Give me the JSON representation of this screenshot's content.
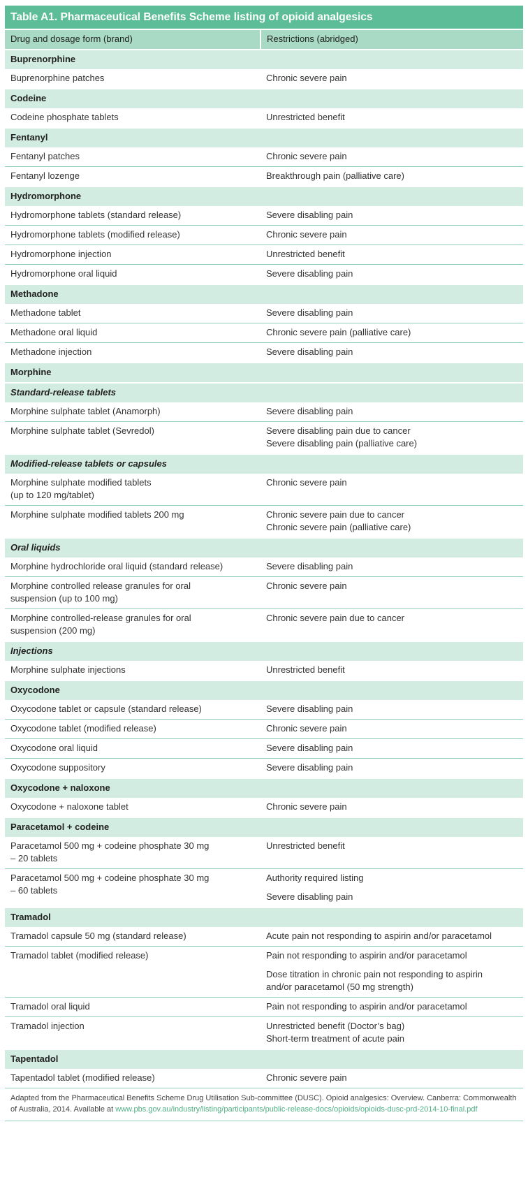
{
  "title": "Table A1. Pharmaceutical Benefits Scheme listing of opioid analgesics",
  "columns": [
    "Drug and dosage form (brand)",
    "Restrictions (abridged)"
  ],
  "rows": [
    {
      "type": "group",
      "label": "Buprenorphine"
    },
    {
      "type": "item",
      "drug": "Buprenorphine patches",
      "restrictions": [
        "Chronic severe pain"
      ]
    },
    {
      "type": "group",
      "label": "Codeine"
    },
    {
      "type": "item",
      "drug": "Codeine phosphate tablets",
      "restrictions": [
        "Unrestricted benefit"
      ]
    },
    {
      "type": "group",
      "label": "Fentanyl"
    },
    {
      "type": "item",
      "drug": "Fentanyl patches",
      "restrictions": [
        "Chronic severe pain"
      ]
    },
    {
      "type": "item",
      "drug": "Fentanyl lozenge",
      "restrictions": [
        "Breakthrough pain (palliative care)"
      ]
    },
    {
      "type": "group",
      "label": "Hydromorphone"
    },
    {
      "type": "item",
      "drug": "Hydromorphone tablets (standard release)",
      "restrictions": [
        "Severe disabling pain"
      ]
    },
    {
      "type": "item",
      "drug": "Hydromorphone tablets (modified release)",
      "restrictions": [
        "Chronic severe pain"
      ]
    },
    {
      "type": "item",
      "drug": "Hydromorphone injection",
      "restrictions": [
        "Unrestricted benefit"
      ]
    },
    {
      "type": "item",
      "drug": "Hydromorphone oral liquid",
      "restrictions": [
        "Severe disabling pain"
      ]
    },
    {
      "type": "group",
      "label": "Methadone"
    },
    {
      "type": "item",
      "drug": "Methadone tablet",
      "restrictions": [
        "Severe disabling pain"
      ]
    },
    {
      "type": "item",
      "drug": "Methadone oral liquid",
      "restrictions": [
        "Chronic severe pain (palliative care)"
      ]
    },
    {
      "type": "item",
      "drug": "Methadone injection",
      "restrictions": [
        "Severe disabling pain"
      ]
    },
    {
      "type": "group",
      "label": "Morphine"
    },
    {
      "type": "subgroup",
      "label": "Standard-release tablets"
    },
    {
      "type": "item",
      "drug": "Morphine sulphate tablet (Anamorph)",
      "restrictions": [
        "Severe disabling pain"
      ]
    },
    {
      "type": "item",
      "drug": "Morphine sulphate tablet (Sevredol)",
      "restrictions": [
        "Severe disabling pain due to cancer\nSevere disabling pain (palliative care)"
      ]
    },
    {
      "type": "subgroup",
      "label": "Modified-release tablets or capsules"
    },
    {
      "type": "item",
      "drug": "Morphine sulphate modified tablets\n(up to 120 mg/tablet)",
      "restrictions": [
        "Chronic severe pain"
      ]
    },
    {
      "type": "item",
      "drug": "Morphine sulphate modified tablets 200 mg",
      "restrictions": [
        "Chronic severe pain due to cancer\nChronic severe pain (palliative care)"
      ]
    },
    {
      "type": "subgroup",
      "label": "Oral liquids"
    },
    {
      "type": "item",
      "drug": "Morphine hydrochloride oral liquid (standard release)",
      "restrictions": [
        "Severe disabling pain"
      ]
    },
    {
      "type": "item",
      "drug": "Morphine controlled release granules for oral\nsuspension (up to 100 mg)",
      "restrictions": [
        "Chronic severe pain"
      ]
    },
    {
      "type": "item",
      "drug": "Morphine controlled-release granules for oral\nsuspension (200 mg)",
      "restrictions": [
        "Chronic severe pain due to cancer"
      ]
    },
    {
      "type": "subgroup",
      "label": "Injections"
    },
    {
      "type": "item",
      "drug": "Morphine sulphate injections",
      "restrictions": [
        "Unrestricted benefit"
      ]
    },
    {
      "type": "group",
      "label": "Oxycodone"
    },
    {
      "type": "item",
      "drug": "Oxycodone tablet or capsule (standard release)",
      "restrictions": [
        "Severe disabling pain"
      ]
    },
    {
      "type": "item",
      "drug": "Oxycodone tablet (modified release)",
      "restrictions": [
        "Chronic severe pain"
      ]
    },
    {
      "type": "item",
      "drug": "Oxycodone oral liquid",
      "restrictions": [
        "Severe disabling pain"
      ]
    },
    {
      "type": "item",
      "drug": "Oxycodone suppository",
      "restrictions": [
        "Severe disabling pain"
      ]
    },
    {
      "type": "group",
      "label": "Oxycodone + naloxone"
    },
    {
      "type": "item",
      "drug": "Oxycodone + naloxone tablet",
      "restrictions": [
        "Chronic severe pain"
      ]
    },
    {
      "type": "group",
      "label": "Paracetamol + codeine"
    },
    {
      "type": "item",
      "drug": "Paracetamol 500 mg + codeine phosphate 30 mg\n– 20 tablets",
      "restrictions": [
        "Unrestricted benefit"
      ]
    },
    {
      "type": "item",
      "drug": "Paracetamol 500 mg + codeine phosphate 30 mg\n– 60 tablets",
      "restrictions": [
        "Authority required listing",
        "Severe disabling pain"
      ]
    },
    {
      "type": "group",
      "label": "Tramadol"
    },
    {
      "type": "item",
      "drug": "Tramadol capsule 50 mg (standard release)",
      "restrictions": [
        "Acute pain not responding to aspirin and/or paracetamol"
      ]
    },
    {
      "type": "item",
      "drug": "Tramadol tablet (modified release)",
      "restrictions": [
        "Pain not responding to aspirin and/or paracetamol",
        "Dose titration in chronic pain not responding to aspirin\nand/or paracetamol (50 mg strength)"
      ]
    },
    {
      "type": "item",
      "drug": "Tramadol oral liquid",
      "restrictions": [
        "Pain not responding to aspirin and/or paracetamol"
      ]
    },
    {
      "type": "item",
      "drug": "Tramadol injection",
      "restrictions": [
        "Unrestricted benefit (Doctor’s bag)\nShort-term treatment of acute pain"
      ]
    },
    {
      "type": "group",
      "label": "Tapentadol"
    },
    {
      "type": "item",
      "drug": "Tapentadol tablet (modified release)",
      "restrictions": [
        "Chronic severe pain"
      ]
    }
  ],
  "footer": {
    "text": "Adapted from the Pharmaceutical Benefits Scheme Drug Utilisation Sub-committee (DUSC). Opioid analgesics: Overview. Canberra: Commonwealth of Australia, 2014. Available at ",
    "link": "www.pbs.gov.au/industry/listing/participants/public-release-docs/opioids/opioids-dusc-prd-2014-10-final.pdf"
  },
  "colors": {
    "title_bg": "#5cbd98",
    "header_bg": "#a9dac6",
    "group_bg": "#d3ece2",
    "rule": "#8ccfb5",
    "link": "#4fae85"
  }
}
